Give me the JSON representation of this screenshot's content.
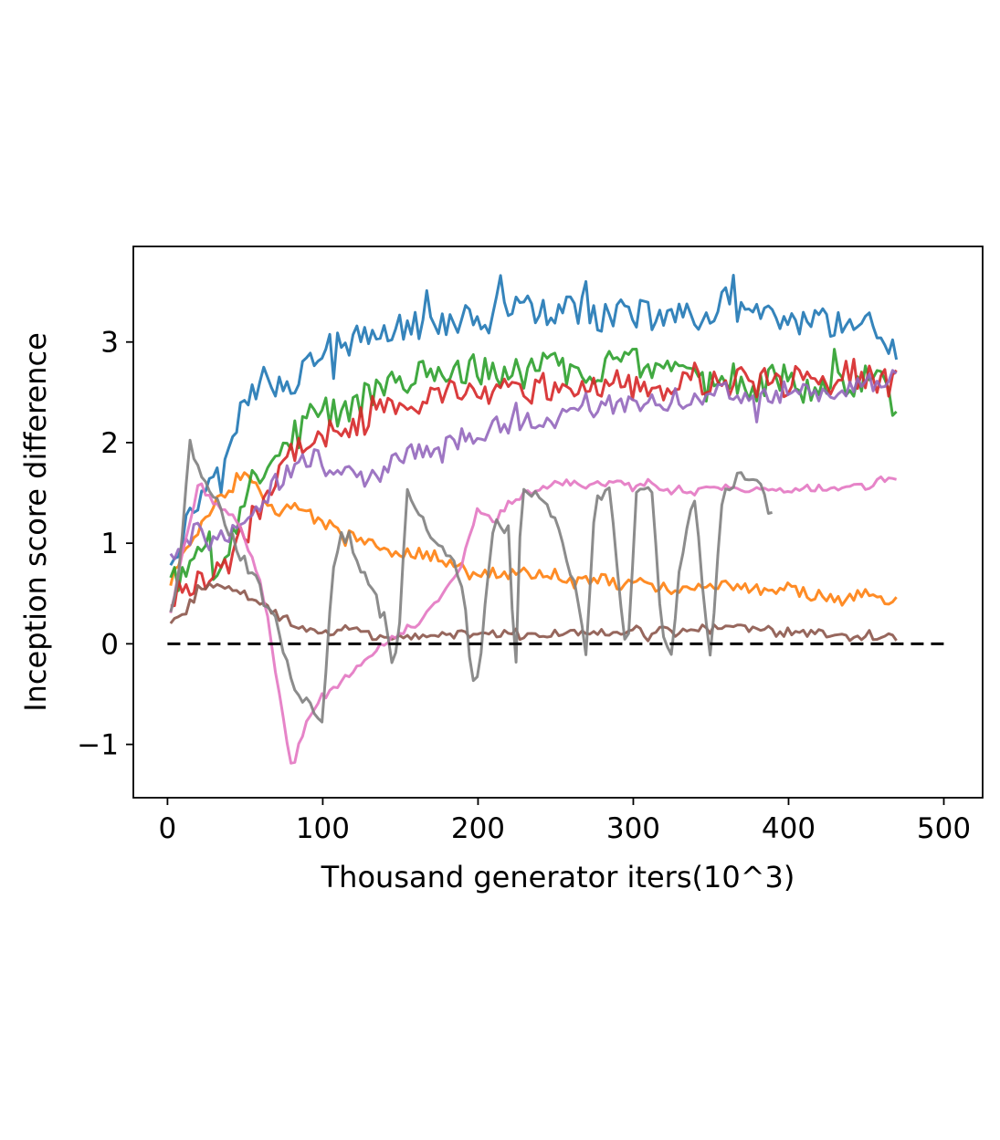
{
  "chart_data": {
    "type": "line",
    "title": "",
    "xlabel": "Thousand generator iters(10^3)",
    "ylabel": "Inception score difference",
    "xlim": [
      -22,
      525
    ],
    "ylim": [
      -1.53,
      3.95
    ],
    "xticks": [
      0,
      100,
      200,
      300,
      400,
      500
    ],
    "yticks": [
      -1,
      0,
      1,
      2,
      3
    ],
    "ytick_labels": [
      "−1",
      "0",
      "1",
      "2",
      "3"
    ],
    "grid": false,
    "legend": "none",
    "reference_line": {
      "y": 0,
      "x": [
        0,
        500
      ],
      "style": "dashed",
      "color": "#000000"
    },
    "series": [
      {
        "color": "#1f77b4",
        "x": [
          2,
          10,
          20,
          30,
          40,
          50,
          60,
          70,
          80,
          90,
          100,
          110,
          120,
          130,
          140,
          150,
          160,
          170,
          180,
          190,
          200,
          210,
          220,
          230,
          240,
          250,
          260,
          270,
          280,
          290,
          300,
          310,
          320,
          330,
          340,
          350,
          360,
          370,
          380,
          390,
          400,
          410,
          420,
          430,
          440,
          450,
          460,
          470
        ],
        "y": [
          0.85,
          1.1,
          1.45,
          1.7,
          2.1,
          2.35,
          2.65,
          2.6,
          2.6,
          2.75,
          2.95,
          2.95,
          3.0,
          3.05,
          3.1,
          3.15,
          3.15,
          3.2,
          3.2,
          3.25,
          3.2,
          3.3,
          3.35,
          3.35,
          3.3,
          3.3,
          3.3,
          3.3,
          3.25,
          3.3,
          3.3,
          3.25,
          3.3,
          3.3,
          3.25,
          3.3,
          3.4,
          3.3,
          3.25,
          3.2,
          3.25,
          3.2,
          3.2,
          3.15,
          3.2,
          3.3,
          3.1,
          2.85
        ]
      },
      {
        "color": "#ff7f0e",
        "x": [
          2,
          10,
          20,
          30,
          40,
          50,
          60,
          70,
          80,
          90,
          100,
          110,
          120,
          130,
          140,
          150,
          160,
          170,
          180,
          190,
          200,
          210,
          220,
          230,
          240,
          250,
          260,
          270,
          280,
          290,
          300,
          310,
          320,
          330,
          340,
          350,
          360,
          370,
          380,
          390,
          400,
          410,
          420,
          430,
          440,
          450,
          460,
          470
        ],
        "y": [
          0.6,
          0.9,
          1.15,
          1.4,
          1.55,
          1.65,
          1.5,
          1.3,
          1.35,
          1.3,
          1.2,
          1.15,
          1.05,
          1.0,
          0.95,
          0.9,
          0.9,
          0.85,
          0.8,
          0.75,
          0.7,
          0.7,
          0.7,
          0.7,
          0.7,
          0.7,
          0.6,
          0.62,
          0.65,
          0.6,
          0.6,
          0.6,
          0.55,
          0.55,
          0.55,
          0.58,
          0.6,
          0.55,
          0.55,
          0.52,
          0.55,
          0.5,
          0.48,
          0.42,
          0.45,
          0.5,
          0.42,
          0.45
        ]
      },
      {
        "color": "#2ca02c",
        "x": [
          2,
          10,
          20,
          30,
          40,
          50,
          60,
          70,
          80,
          90,
          100,
          110,
          120,
          130,
          140,
          150,
          160,
          170,
          180,
          190,
          200,
          210,
          220,
          230,
          240,
          250,
          260,
          270,
          280,
          290,
          300,
          310,
          320,
          330,
          340,
          350,
          360,
          370,
          380,
          390,
          400,
          410,
          420,
          430,
          440,
          450,
          460,
          470
        ],
        "y": [
          0.7,
          0.75,
          0.85,
          0.75,
          1.0,
          1.5,
          1.7,
          2.0,
          2.05,
          2.2,
          2.3,
          2.25,
          2.4,
          2.45,
          2.55,
          2.6,
          2.7,
          2.6,
          2.65,
          2.75,
          2.7,
          2.7,
          2.65,
          2.7,
          2.75,
          2.8,
          2.7,
          2.7,
          2.75,
          2.85,
          2.8,
          2.6,
          2.65,
          2.65,
          2.6,
          2.55,
          2.65,
          2.6,
          2.5,
          2.7,
          2.65,
          2.55,
          2.6,
          2.7,
          2.5,
          2.6,
          2.75,
          2.3
        ]
      },
      {
        "color": "#d62728",
        "x": [
          2,
          10,
          20,
          30,
          40,
          50,
          60,
          70,
          80,
          90,
          100,
          110,
          120,
          130,
          140,
          150,
          160,
          170,
          180,
          190,
          200,
          210,
          220,
          230,
          240,
          250,
          260,
          270,
          280,
          290,
          300,
          310,
          320,
          330,
          340,
          350,
          360,
          370,
          380,
          390,
          400,
          410,
          420,
          430,
          440,
          450,
          460,
          470
        ],
        "y": [
          0.4,
          0.5,
          0.6,
          0.7,
          0.85,
          1.1,
          1.4,
          1.7,
          1.9,
          2.0,
          2.1,
          2.15,
          2.2,
          2.3,
          2.35,
          2.45,
          2.4,
          2.45,
          2.5,
          2.5,
          2.45,
          2.45,
          2.55,
          2.5,
          2.55,
          2.5,
          2.55,
          2.55,
          2.6,
          2.6,
          2.55,
          2.6,
          2.55,
          2.6,
          2.65,
          2.6,
          2.55,
          2.6,
          2.6,
          2.65,
          2.55,
          2.7,
          2.65,
          2.6,
          2.7,
          2.65,
          2.6,
          2.6
        ]
      },
      {
        "color": "#9467bd",
        "x": [
          2,
          10,
          20,
          30,
          40,
          50,
          60,
          70,
          80,
          90,
          100,
          110,
          120,
          130,
          140,
          150,
          160,
          170,
          180,
          190,
          200,
          210,
          220,
          230,
          240,
          250,
          260,
          270,
          280,
          290,
          300,
          310,
          320,
          330,
          340,
          350,
          360,
          370,
          380,
          390,
          400,
          410,
          420,
          430,
          440,
          450,
          460,
          470
        ],
        "y": [
          0.9,
          1.05,
          1.1,
          1.0,
          1.05,
          1.2,
          1.4,
          1.6,
          1.75,
          1.85,
          1.85,
          1.75,
          1.7,
          1.65,
          1.75,
          1.85,
          1.9,
          1.95,
          2.0,
          2.05,
          2.1,
          2.15,
          2.2,
          2.25,
          2.2,
          2.25,
          2.3,
          2.3,
          2.35,
          2.4,
          2.4,
          2.45,
          2.4,
          2.45,
          2.45,
          2.5,
          2.5,
          2.5,
          2.45,
          2.5,
          2.5,
          2.55,
          2.5,
          2.55,
          2.55,
          2.6,
          2.65,
          2.7
        ]
      },
      {
        "color": "#8c564b",
        "x": [
          2,
          10,
          20,
          30,
          40,
          50,
          60,
          70,
          80,
          90,
          100,
          110,
          120,
          130,
          140,
          150,
          160,
          170,
          180,
          190,
          200,
          210,
          220,
          230,
          240,
          250,
          260,
          270,
          280,
          290,
          300,
          310,
          320,
          330,
          340,
          350,
          360,
          370,
          380,
          390,
          400,
          410,
          420,
          430,
          440,
          450,
          460,
          470
        ],
        "y": [
          0.2,
          0.3,
          0.5,
          0.6,
          0.55,
          0.5,
          0.4,
          0.3,
          0.2,
          0.15,
          0.1,
          0.15,
          0.15,
          0.1,
          0.05,
          0.05,
          0.1,
          0.1,
          0.05,
          0.1,
          0.1,
          0.1,
          0.1,
          0.1,
          0.1,
          0.1,
          0.1,
          0.12,
          0.12,
          0.1,
          0.12,
          0.1,
          0.12,
          0.1,
          0.15,
          0.18,
          0.2,
          0.18,
          0.15,
          0.12,
          0.12,
          0.12,
          0.12,
          0.1,
          0.05,
          0.1,
          0.08,
          0.08
        ]
      },
      {
        "color": "#e377c2",
        "x": [
          2,
          10,
          20,
          30,
          40,
          50,
          60,
          65,
          70,
          75,
          80,
          85,
          90,
          100,
          110,
          120,
          130,
          140,
          150,
          160,
          170,
          180,
          190,
          195,
          200,
          205,
          210,
          220,
          230,
          240,
          250,
          260,
          270,
          280,
          290,
          300,
          310,
          320,
          330,
          340,
          350,
          360,
          370,
          380,
          390,
          400,
          410,
          420,
          430,
          440,
          450,
          460,
          470
        ],
        "y": [
          0.3,
          0.9,
          1.6,
          1.4,
          1.3,
          1.05,
          0.6,
          0.2,
          -0.3,
          -0.8,
          -1.25,
          -1.0,
          -0.75,
          -0.55,
          -0.4,
          -0.25,
          -0.1,
          0.0,
          0.1,
          0.2,
          0.35,
          0.55,
          0.8,
          1.1,
          1.35,
          1.3,
          1.2,
          1.4,
          1.5,
          1.55,
          1.6,
          1.6,
          1.55,
          1.6,
          1.6,
          1.55,
          1.6,
          1.5,
          1.55,
          1.5,
          1.55,
          1.55,
          1.5,
          1.55,
          1.55,
          1.5,
          1.55,
          1.55,
          1.55,
          1.6,
          1.55,
          1.65,
          1.6
        ]
      },
      {
        "color": "#7f7f7f",
        "x": [
          2,
          8,
          14,
          20,
          30,
          40,
          50,
          60,
          70,
          80,
          90,
          100,
          104,
          108,
          112,
          120,
          130,
          140,
          145,
          150,
          154,
          160,
          170,
          180,
          190,
          196,
          200,
          205,
          210,
          220,
          224,
          228,
          235,
          245,
          255,
          265,
          270,
          275,
          285,
          292,
          296,
          302,
          312,
          318,
          324,
          330,
          340,
          346,
          350,
          356,
          360,
          370,
          380,
          390
        ],
        "y": [
          0.3,
          0.8,
          2.0,
          1.75,
          1.5,
          1.1,
          0.8,
          0.6,
          0.2,
          -0.4,
          -0.6,
          -0.8,
          0.3,
          0.9,
          1.1,
          0.9,
          0.6,
          0.3,
          -0.2,
          0.2,
          1.5,
          1.3,
          1.1,
          0.9,
          0.6,
          -0.3,
          -0.4,
          0.5,
          1.2,
          1.1,
          -0.4,
          1.5,
          1.5,
          1.4,
          1.0,
          0.4,
          -0.1,
          1.4,
          1.6,
          0.4,
          -0.2,
          1.5,
          1.5,
          0.2,
          -0.2,
          0.8,
          1.5,
          0.3,
          -0.2,
          1.3,
          1.5,
          1.7,
          1.6,
          1.25
        ]
      }
    ]
  }
}
